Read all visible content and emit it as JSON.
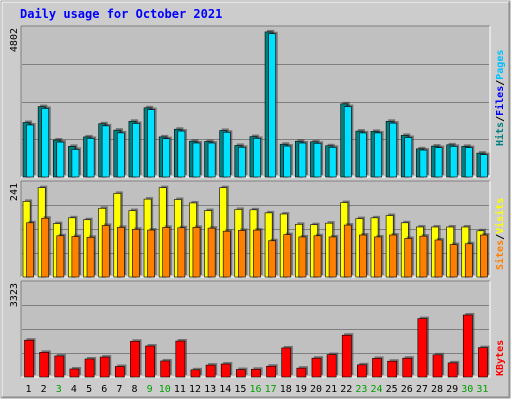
{
  "chart_data": {
    "type": "bar",
    "title": "Daily usage for October 2021",
    "categories": [
      "1",
      "2",
      "3",
      "4",
      "5",
      "6",
      "7",
      "8",
      "9",
      "10",
      "11",
      "12",
      "13",
      "14",
      "15",
      "16",
      "17",
      "18",
      "19",
      "20",
      "21",
      "22",
      "23",
      "24",
      "25",
      "26",
      "27",
      "28",
      "29",
      "30",
      "31"
    ],
    "weekend_days": [
      "3",
      "9",
      "10",
      "16",
      "17",
      "23",
      "24",
      "30",
      "31"
    ],
    "panels": [
      {
        "id": "hits-files",
        "scale_label": "4802",
        "ymax": 4802,
        "series": [
          {
            "name": "Hits",
            "color": "#008080",
            "values": [
              1780,
              2300,
              1210,
              1000,
              1310,
              1740,
              1530,
              1820,
              2260,
              1310,
              1560,
              1170,
              1160,
              1520,
              1030,
              1320,
              4740,
              1070,
              1170,
              1150,
              1020,
              2390,
              1500,
              1490,
              1820,
              1360,
              920,
              1010,
              1050,
              1000,
              780
            ]
          },
          {
            "name": "Files",
            "color": "#00e0ff",
            "values": [
              1700,
              2240,
              1140,
              900,
              1260,
              1670,
              1440,
              1750,
              2200,
              1250,
              1500,
              1110,
              1110,
              1460,
              970,
              1260,
              4680,
              1010,
              1110,
              1100,
              970,
              2300,
              1440,
              1440,
              1760,
              1290,
              880,
              960,
              1000,
              960,
              730
            ]
          }
        ]
      },
      {
        "id": "pages-visits-sites",
        "scale_label": "241",
        "ymax": 241,
        "series": [
          {
            "name": "Pages",
            "color": "#2060ff",
            "values": [
              0,
              0,
              0,
              0,
              0,
              0,
              0,
              0,
              0,
              0,
              0,
              0,
              0,
              0,
              0,
              0,
              0,
              0,
              0,
              0,
              0,
              0,
              0,
              0,
              0,
              0,
              0,
              0,
              0,
              0,
              0
            ]
          },
          {
            "name": "Visits",
            "color": "#ffff00",
            "values": [
              198,
              234,
              140,
              155,
              150,
              180,
              219,
              174,
              204,
              234,
              203,
              194,
              174,
              234,
              177,
              176,
              168,
              165,
              138,
              137,
              141,
              195,
              153,
              155,
              161,
              142,
              131,
              131,
              131,
              131,
              121
            ]
          },
          {
            "name": "Sites",
            "color": "#ff8000",
            "values": [
              142,
              154,
              108,
              106,
              104,
              135,
              130,
              125,
              123,
              130,
              129,
              130,
              128,
              120,
              122,
              123,
              95,
              111,
              105,
              108,
              105,
              136,
              110,
              105,
              110,
              101,
              107,
              97,
              85,
              87,
              110
            ]
          }
        ]
      },
      {
        "id": "kbytes",
        "scale_label": "3323",
        "ymax": 3323,
        "series": [
          {
            "name": "KBytes",
            "color": "#ff0000",
            "values": [
              1330,
              890,
              760,
              290,
              650,
              720,
              380,
              1290,
              1120,
              580,
              1300,
              260,
              430,
              470,
              270,
              280,
              390,
              1050,
              320,
              680,
              810,
              1510,
              440,
              670,
              570,
              680,
              2110,
              800,
              510,
              2240,
              1060
            ]
          }
        ]
      }
    ],
    "legend": [
      {
        "panel": "hits-files",
        "items": [
          {
            "text": "Hits",
            "color": "#008080"
          },
          {
            "text": "/",
            "color": "#000000"
          },
          {
            "text": "Files",
            "color": "#0000ff"
          },
          {
            "text": "/",
            "color": "#000000"
          },
          {
            "text": "Pages",
            "color": "#00c0ff"
          }
        ]
      },
      {
        "panel": "pages-visits-sites",
        "items": [
          {
            "text": "Sites",
            "color": "#ff8000"
          },
          {
            "text": "/",
            "color": "#000000"
          },
          {
            "text": "Visits",
            "color": "#ffff00"
          }
        ]
      },
      {
        "panel": "kbytes",
        "items": [
          {
            "text": "KBytes",
            "color": "#ff0000"
          }
        ]
      }
    ],
    "colors": {
      "frame": "#cccccc",
      "plot_bg": "#c0c0c0",
      "grid": "#808080",
      "title": "#0000ff",
      "weekday_label": "#000000",
      "weekend_label": "#00a000"
    },
    "grid": true
  }
}
